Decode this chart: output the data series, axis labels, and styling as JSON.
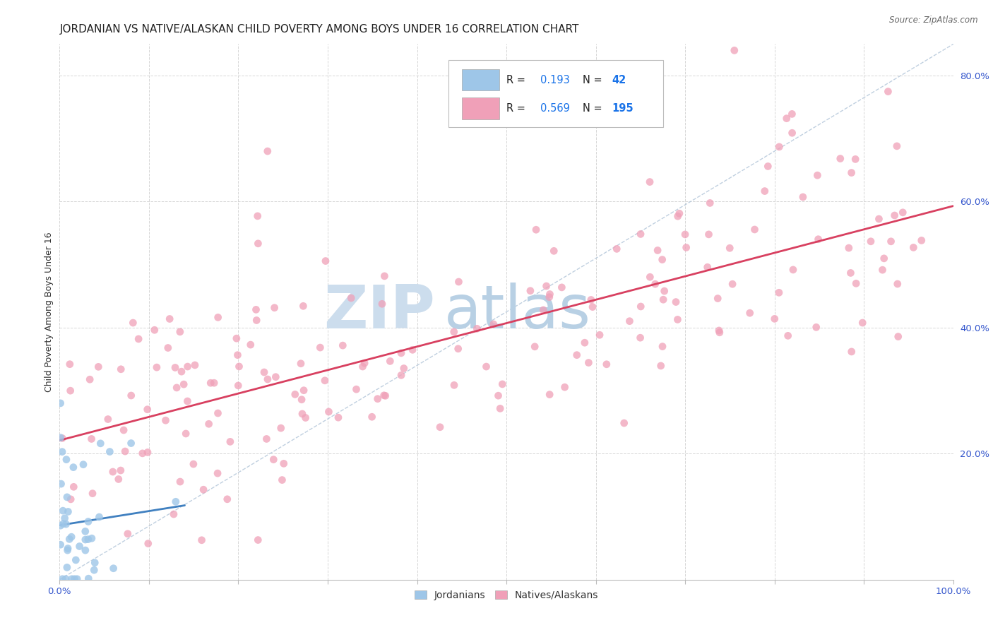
{
  "title": "JORDANIAN VS NATIVE/ALASKAN CHILD POVERTY AMONG BOYS UNDER 16 CORRELATION CHART",
  "source": "Source: ZipAtlas.com",
  "ylabel": "Child Poverty Among Boys Under 16",
  "xlim": [
    0.0,
    1.0
  ],
  "ylim": [
    0.0,
    0.85
  ],
  "r_jordanian": 0.193,
  "n_jordanian": 42,
  "r_native": 0.569,
  "n_native": 195,
  "color_jordanian": "#9ec6e8",
  "color_native": "#f0a0b8",
  "color_line_jordanian": "#4080c0",
  "color_line_native": "#d84060",
  "color_diag": "#b0c4d8",
  "legend_r_color": "#222222",
  "legend_n_color": "#1a73e8",
  "watermark_zip": "ZIP",
  "watermark_atlas": "atlas",
  "watermark_color_zip": "#d0e4f0",
  "watermark_color_atlas": "#b8d4e8",
  "background_color": "#ffffff",
  "grid_color": "#cccccc",
  "title_fontsize": 11,
  "axis_label_fontsize": 9,
  "tick_fontsize": 9.5,
  "scatter_size": 60,
  "tick_color": "#3355cc"
}
